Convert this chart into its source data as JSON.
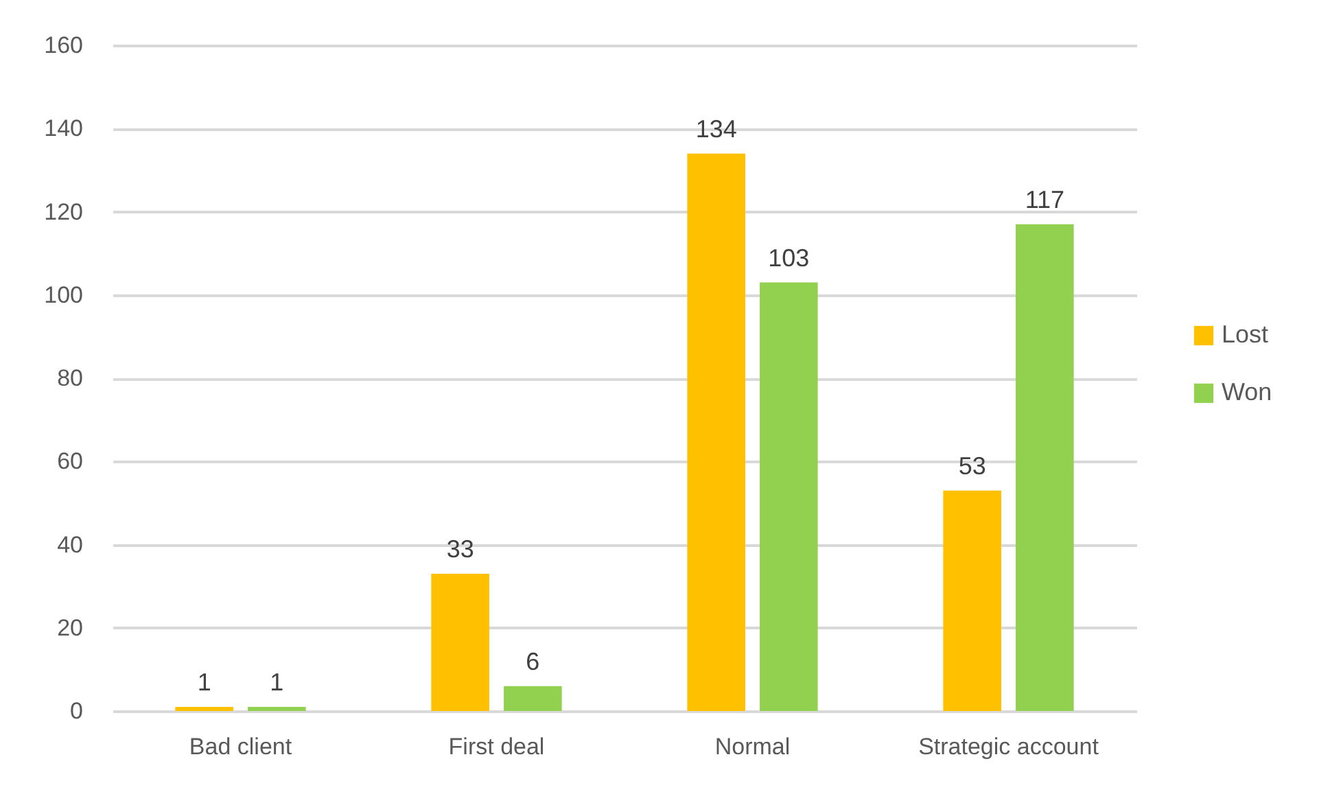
{
  "chart_data": {
    "type": "bar",
    "categories": [
      "Bad client",
      "First deal",
      "Normal",
      "Strategic account"
    ],
    "series": [
      {
        "name": "Lost",
        "color": "#ffc000",
        "values": [
          1,
          33,
          134,
          53
        ]
      },
      {
        "name": "Won",
        "color": "#92d050",
        "values": [
          1,
          6,
          103,
          117
        ]
      }
    ],
    "ylim": [
      0,
      160
    ],
    "yticks": [
      0,
      20,
      40,
      60,
      80,
      100,
      120,
      140,
      160
    ],
    "grid": "y",
    "legend": "right",
    "data_labels": true
  }
}
